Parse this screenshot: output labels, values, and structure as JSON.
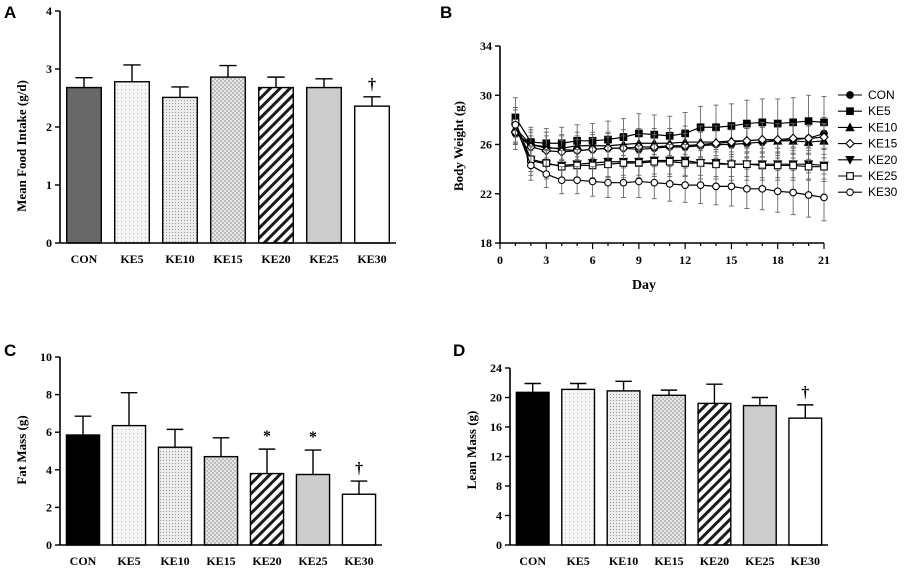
{
  "chart_data": [
    {
      "panel": "A",
      "type": "bar",
      "title": "",
      "xlabel": "",
      "ylabel": "Mean Food Intake (g/d)",
      "ylim": [
        0,
        4
      ],
      "yticks": [
        "0",
        "1",
        "2",
        "3",
        "4"
      ],
      "categories": [
        "CON",
        "KE5",
        "KE10",
        "KE15",
        "KE20",
        "KE25",
        "KE30"
      ],
      "values": [
        2.68,
        2.78,
        2.51,
        2.86,
        2.68,
        2.68,
        2.36
      ],
      "errors": [
        0.17,
        0.29,
        0.18,
        0.2,
        0.18,
        0.15,
        0.16
      ],
      "annotations": [
        "",
        "",
        "",
        "",
        "",
        "",
        "†"
      ]
    },
    {
      "panel": "B",
      "type": "line",
      "title": "",
      "xlabel": "Day",
      "ylabel": "Body Weight (g)",
      "xlim": [
        0,
        21
      ],
      "ylim": [
        18,
        34
      ],
      "xticks": [
        "0",
        "3",
        "6",
        "9",
        "12",
        "15",
        "18",
        "21"
      ],
      "yticks": [
        "18",
        "22",
        "26",
        "30",
        "34"
      ],
      "x": [
        1,
        2,
        3,
        4,
        5,
        6,
        7,
        8,
        9,
        10,
        11,
        12,
        13,
        14,
        15,
        16,
        17,
        18,
        19,
        20,
        21
      ],
      "series": [
        {
          "name": "CON",
          "marker": "circle-filled",
          "values": [
            26.9,
            26.0,
            25.8,
            25.6,
            25.5,
            25.6,
            25.7,
            25.7,
            25.6,
            25.7,
            25.8,
            25.8,
            25.9,
            26.0,
            26.0,
            26.1,
            26.2,
            26.3,
            26.4,
            26.5,
            26.9
          ],
          "errors": [
            1.3,
            1.2,
            1.2,
            1.2,
            1.2,
            1.2,
            1.2,
            1.2,
            1.2,
            1.2,
            1.2,
            1.2,
            1.2,
            1.2,
            1.2,
            1.2,
            1.2,
            1.2,
            1.2,
            1.2,
            1.3
          ]
        },
        {
          "name": "KE5",
          "marker": "square-filled",
          "values": [
            28.2,
            26.2,
            26.1,
            26.1,
            26.3,
            26.3,
            26.4,
            26.6,
            26.9,
            26.8,
            26.7,
            26.9,
            27.4,
            27.4,
            27.5,
            27.7,
            27.8,
            27.7,
            27.8,
            27.9,
            27.8
          ],
          "errors": [
            1.6,
            1.2,
            1.2,
            1.3,
            1.3,
            1.4,
            1.5,
            1.5,
            1.6,
            1.6,
            1.6,
            1.7,
            1.7,
            1.8,
            1.8,
            1.9,
            1.9,
            2.0,
            2.0,
            2.1,
            2.1
          ]
        },
        {
          "name": "KE10",
          "marker": "triangle-up-filled",
          "values": [
            27.3,
            26.0,
            25.7,
            25.7,
            25.9,
            25.9,
            25.9,
            26.0,
            26.1,
            26.1,
            26.1,
            26.2,
            26.2,
            26.2,
            26.3,
            26.3,
            26.4,
            26.3,
            26.3,
            26.2,
            26.3
          ],
          "errors": [
            1.2,
            1.0,
            1.0,
            1.0,
            1.1,
            1.1,
            1.1,
            1.2,
            1.2,
            1.2,
            1.2,
            1.3,
            1.3,
            1.3,
            1.3,
            1.3,
            1.4,
            1.4,
            1.4,
            1.4,
            1.4
          ]
        },
        {
          "name": "KE15",
          "marker": "diamond-open",
          "values": [
            27.0,
            25.8,
            25.5,
            25.4,
            25.5,
            25.6,
            25.7,
            25.7,
            25.8,
            25.8,
            25.9,
            25.9,
            26.0,
            26.1,
            26.2,
            26.3,
            26.4,
            26.4,
            26.5,
            26.5,
            26.6
          ],
          "errors": [
            1.0,
            0.9,
            0.9,
            0.9,
            0.9,
            0.9,
            0.9,
            1.0,
            1.0,
            1.0,
            1.0,
            1.0,
            1.0,
            1.0,
            1.0,
            1.0,
            1.0,
            1.0,
            1.0,
            1.0,
            1.0
          ]
        },
        {
          "name": "KE20",
          "marker": "triangle-down-filled",
          "values": [
            27.4,
            24.7,
            24.4,
            24.3,
            24.4,
            24.5,
            24.6,
            24.6,
            24.6,
            24.7,
            24.7,
            24.7,
            24.5,
            24.5,
            24.4,
            24.4,
            24.4,
            24.4,
            24.4,
            24.4,
            24.3
          ],
          "errors": [
            1.4,
            1.2,
            1.2,
            1.2,
            1.2,
            1.3,
            1.3,
            1.3,
            1.3,
            1.3,
            1.3,
            1.3,
            1.3,
            1.3,
            1.3,
            1.3,
            1.3,
            1.3,
            1.3,
            1.3,
            1.3
          ]
        },
        {
          "name": "KE25",
          "marker": "square-open",
          "values": [
            27.8,
            24.8,
            24.5,
            24.2,
            24.3,
            24.3,
            24.4,
            24.5,
            24.5,
            24.6,
            24.6,
            24.5,
            24.5,
            24.4,
            24.4,
            24.4,
            24.3,
            24.3,
            24.3,
            24.2,
            24.2
          ],
          "errors": [
            1.2,
            1.0,
            1.0,
            1.0,
            1.0,
            1.0,
            1.0,
            1.0,
            1.0,
            1.0,
            1.0,
            1.0,
            1.0,
            1.0,
            1.0,
            1.0,
            1.0,
            1.0,
            1.0,
            1.0,
            1.0
          ]
        },
        {
          "name": "KE30",
          "marker": "circle-open",
          "values": [
            27.6,
            24.3,
            23.6,
            23.1,
            23.1,
            23.0,
            22.9,
            22.9,
            23.0,
            22.9,
            22.8,
            22.7,
            22.7,
            22.6,
            22.6,
            22.4,
            22.4,
            22.2,
            22.1,
            21.9,
            21.7
          ],
          "errors": [
            1.4,
            1.2,
            1.1,
            1.1,
            1.1,
            1.2,
            1.2,
            1.2,
            1.3,
            1.3,
            1.4,
            1.4,
            1.5,
            1.5,
            1.6,
            1.6,
            1.7,
            1.7,
            1.8,
            1.8,
            1.9
          ]
        }
      ],
      "legend": "right"
    },
    {
      "panel": "C",
      "type": "bar",
      "title": "",
      "xlabel": "",
      "ylabel": "Fat Mass (g)",
      "ylim": [
        0,
        10
      ],
      "yticks": [
        "0",
        "2",
        "4",
        "6",
        "8",
        "10"
      ],
      "categories": [
        "CON",
        "KE5",
        "KE10",
        "KE15",
        "KE20",
        "KE25",
        "KE30"
      ],
      "values": [
        5.85,
        6.35,
        5.2,
        4.7,
        3.8,
        3.75,
        2.7
      ],
      "errors": [
        1.0,
        1.75,
        0.95,
        1.0,
        1.3,
        1.3,
        0.7
      ],
      "annotations": [
        "",
        "",
        "",
        "",
        "*",
        "*",
        "†"
      ]
    },
    {
      "panel": "D",
      "type": "bar",
      "title": "",
      "xlabel": "",
      "ylabel": "Lean Mass (g)",
      "ylim": [
        0,
        24
      ],
      "yticks": [
        "0",
        "4",
        "8",
        "12",
        "16",
        "20",
        "24"
      ],
      "categories": [
        "CON",
        "KE5",
        "KE10",
        "KE15",
        "KE20",
        "KE25",
        "KE30"
      ],
      "values": [
        20.7,
        21.1,
        20.9,
        20.3,
        19.2,
        18.9,
        17.2
      ],
      "errors": [
        1.2,
        0.8,
        1.3,
        0.7,
        2.6,
        1.1,
        1.8
      ],
      "annotations": [
        "",
        "",
        "",
        "",
        "",
        "",
        "†"
      ]
    }
  ]
}
